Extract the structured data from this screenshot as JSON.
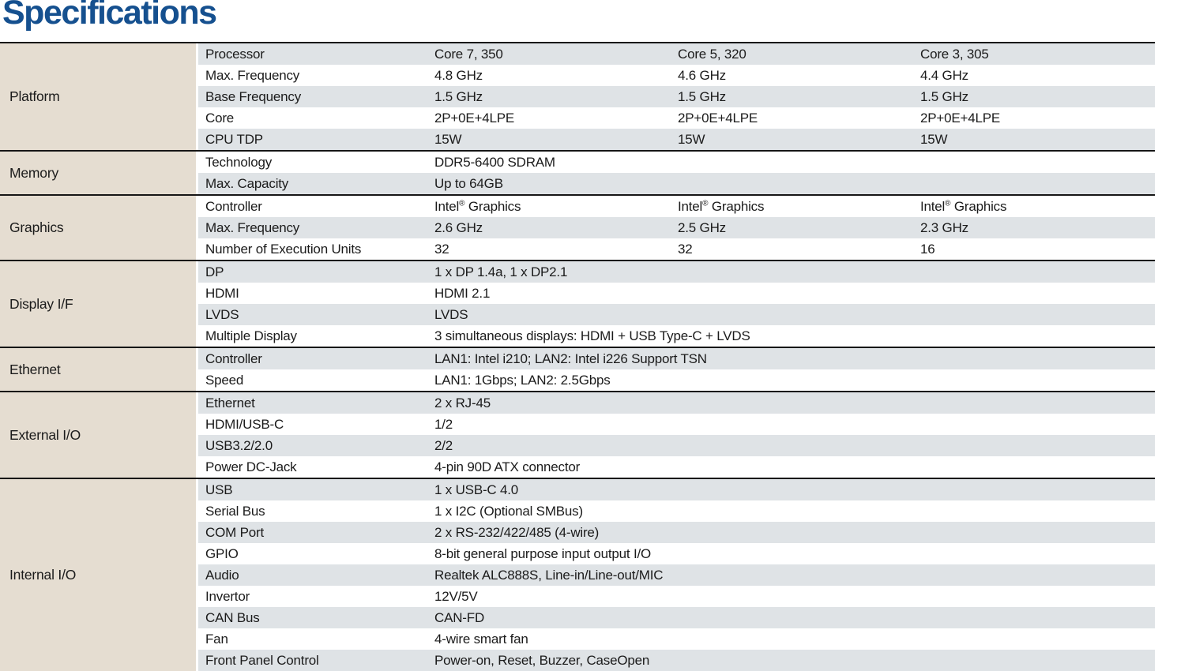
{
  "page_title": "Specifications",
  "colors": {
    "title": "#15508f",
    "line": "#161616",
    "category_bg": "#e5ddd1",
    "row_bg": "#ffffff",
    "row_alt_bg": "#dfe3e6",
    "text": "#1b1b1b"
  },
  "table": {
    "sections": [
      {
        "category": "Platform",
        "rows": [
          {
            "label": "Processor",
            "values": [
              "Core 7, 350",
              "Core 5, 320",
              "Core 3, 305"
            ]
          },
          {
            "label": "Max. Frequency",
            "values": [
              "4.8 GHz",
              "4.6 GHz",
              "4.4 GHz"
            ]
          },
          {
            "label": "Base Frequency",
            "values": [
              "1.5 GHz",
              "1.5 GHz",
              "1.5 GHz"
            ]
          },
          {
            "label": "Core",
            "values": [
              "2P+0E+4LPE",
              "2P+0E+4LPE",
              "2P+0E+4LPE"
            ]
          },
          {
            "label": "CPU TDP",
            "values": [
              "15W",
              "15W",
              "15W"
            ]
          }
        ]
      },
      {
        "category": "Memory",
        "rows": [
          {
            "label": "Technology",
            "values": [
              "DDR5-6400 SDRAM"
            ]
          },
          {
            "label": "Max. Capacity",
            "values": [
              "Up to 64GB"
            ]
          }
        ]
      },
      {
        "category": "Graphics",
        "rows": [
          {
            "label": "Controller",
            "values": [
              "Intel® Graphics",
              "Intel® Graphics",
              "Intel® Graphics"
            ]
          },
          {
            "label": "Max. Frequency",
            "values": [
              "2.6 GHz",
              "2.5 GHz",
              "2.3 GHz"
            ]
          },
          {
            "label": "Number of Execution Units",
            "values": [
              "32",
              "32",
              "16"
            ]
          }
        ]
      },
      {
        "category": "Display I/F",
        "rows": [
          {
            "label": "DP",
            "values": [
              "1 x DP 1.4a, 1 x DP2.1"
            ]
          },
          {
            "label": "HDMI",
            "values": [
              "HDMI 2.1"
            ]
          },
          {
            "label": "LVDS",
            "values": [
              "LVDS"
            ]
          },
          {
            "label": "Multiple Display",
            "values": [
              "3 simultaneous displays: HDMI + USB Type-C + LVDS"
            ]
          }
        ]
      },
      {
        "category": "Ethernet",
        "rows": [
          {
            "label": "Controller",
            "values": [
              "LAN1: Intel i210; LAN2: Intel i226 Support TSN"
            ]
          },
          {
            "label": "Speed",
            "values": [
              "LAN1: 1Gbps; LAN2: 2.5Gbps"
            ]
          }
        ]
      },
      {
        "category": "External I/O",
        "rows": [
          {
            "label": "Ethernet",
            "values": [
              "2 x RJ-45"
            ]
          },
          {
            "label": "HDMI/USB-C",
            "values": [
              "1/2"
            ]
          },
          {
            "label": "USB3.2/2.0",
            "values": [
              "2/2"
            ]
          },
          {
            "label": "Power DC-Jack",
            "values": [
              "4-pin 90D ATX connector"
            ]
          }
        ]
      },
      {
        "category": "Internal I/O",
        "rows": [
          {
            "label": "USB",
            "values": [
              "1 x USB-C 4.0"
            ]
          },
          {
            "label": "Serial Bus",
            "values": [
              "1 x I2C (Optional SMBus)"
            ]
          },
          {
            "label": "COM Port",
            "values": [
              "2 x RS-232/422/485 (4-wire)"
            ]
          },
          {
            "label": "GPIO",
            "values": [
              "8-bit general purpose input output I/O"
            ]
          },
          {
            "label": "Audio",
            "values": [
              "Realtek ALC888S, Line-in/Line-out/MIC"
            ]
          },
          {
            "label": "Invertor",
            "values": [
              "12V/5V"
            ]
          },
          {
            "label": "CAN Bus",
            "values": [
              "CAN-FD"
            ]
          },
          {
            "label": "Fan",
            "values": [
              "4-wire smart fan"
            ]
          },
          {
            "label": "Front Panel Control",
            "values": [
              "Power-on, Reset, Buzzer, CaseOpen"
            ]
          }
        ]
      }
    ]
  }
}
